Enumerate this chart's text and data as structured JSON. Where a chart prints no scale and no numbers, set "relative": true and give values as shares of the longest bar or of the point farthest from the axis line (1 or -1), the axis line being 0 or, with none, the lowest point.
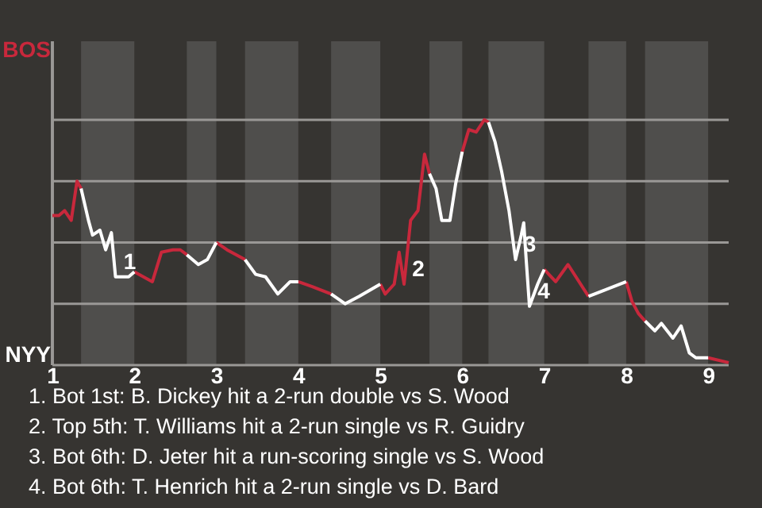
{
  "chart_data": {
    "type": "line",
    "relative": true,
    "x": [
      1.0,
      1.08,
      1.15,
      1.23,
      1.3,
      1.35,
      1.44,
      1.49,
      1.58,
      1.65,
      1.72,
      1.77,
      1.87,
      1.93,
      2.0,
      2.22,
      2.33,
      2.47,
      2.56,
      2.64,
      2.78,
      2.89,
      3.0,
      3.13,
      3.35,
      3.48,
      3.6,
      3.75,
      3.9,
      4.0,
      4.17,
      4.4,
      4.57,
      4.74,
      5.0,
      5.06,
      5.17,
      5.23,
      5.29,
      5.37,
      5.46,
      5.54,
      5.6,
      5.68,
      5.75,
      5.85,
      5.92,
      6.0,
      6.08,
      6.17,
      6.27,
      6.32,
      6.4,
      6.48,
      6.57,
      6.65,
      6.72,
      6.75,
      6.78,
      6.82,
      6.92,
      7.0,
      7.14,
      7.29,
      7.54,
      7.69,
      8.0,
      8.07,
      8.15,
      8.23,
      8.35,
      8.43,
      8.57,
      8.67,
      8.77,
      8.85,
      9.0,
      9.25
    ],
    "series": [
      {
        "color": "#c8283c",
        "values": [
          0.61,
          0.61,
          0.63,
          0.59,
          0.75,
          0.72,
          null,
          null,
          null,
          null,
          null,
          null,
          null,
          null,
          0.38,
          0.34,
          0.46,
          0.47,
          0.47,
          0.45,
          null,
          null,
          0.5,
          0.47,
          0.43,
          null,
          null,
          null,
          null,
          0.34,
          0.32,
          0.29,
          null,
          null,
          0.33,
          0.29,
          0.33,
          0.46,
          0.33,
          0.59,
          0.63,
          0.86,
          0.78,
          null,
          null,
          null,
          null,
          0.87,
          0.96,
          0.95,
          1,
          0.99,
          null,
          null,
          null,
          null,
          null,
          null,
          null,
          null,
          null,
          0.39,
          0.34,
          0.41,
          0.28,
          null,
          0.34,
          0.26,
          0.21,
          0.18,
          null,
          null,
          null,
          null,
          null,
          null,
          0.03,
          0.01
        ]
      },
      {
        "color": "#ffffff",
        "values": [
          null,
          null,
          null,
          null,
          null,
          0.72,
          0.59,
          0.53,
          0.55,
          0.47,
          0.54,
          0.36,
          0.36,
          0.36,
          0.38,
          null,
          null,
          null,
          null,
          0.45,
          0.41,
          0.43,
          0.5,
          null,
          0.43,
          0.37,
          0.36,
          0.29,
          0.34,
          0.34,
          null,
          0.29,
          0.25,
          0.28,
          0.33,
          null,
          null,
          null,
          null,
          null,
          null,
          null,
          0.78,
          0.72,
          0.59,
          0.59,
          0.74,
          0.87,
          null,
          null,
          null,
          0.99,
          0.91,
          0.79,
          0.63,
          0.43,
          0.53,
          0.58,
          0.43,
          0.24,
          0.33,
          0.39,
          null,
          null,
          0.28,
          0.3,
          0.34,
          null,
          null,
          0.18,
          0.14,
          0.17,
          0.11,
          0.16,
          0.05,
          0.03,
          0.03,
          null
        ]
      }
    ],
    "xlim": [
      1,
      9.25
    ],
    "xticks": [
      1,
      2,
      3,
      4,
      5,
      6,
      7,
      8,
      9
    ],
    "grid": "y",
    "bands": [
      {
        "axis": "x",
        "from": 1.35,
        "to": 2.0,
        "color": "#4f4e4c"
      },
      {
        "axis": "x",
        "from": 2.64,
        "to": 3.0,
        "color": "#4f4e4c"
      },
      {
        "axis": "x",
        "from": 3.35,
        "to": 4.0,
        "color": "#4f4e4c"
      },
      {
        "axis": "x",
        "from": 4.4,
        "to": 5.0,
        "color": "#4f4e4c"
      },
      {
        "axis": "x",
        "from": 5.6,
        "to": 6.0,
        "color": "#4f4e4c"
      },
      {
        "axis": "x",
        "from": 6.32,
        "to": 7.0,
        "color": "#4f4e4c"
      },
      {
        "axis": "x",
        "from": 7.54,
        "to": 8.0,
        "color": "#4f4e4c"
      },
      {
        "axis": "x",
        "from": 8.23,
        "to": 9.0,
        "color": "#4f4e4c"
      }
    ],
    "annotations": [
      "BOS",
      "NYY",
      {
        "text": "1",
        "x": 1.77,
        "y": 0.36
      },
      {
        "text": "2",
        "x": 5.29,
        "y": 0.33
      },
      {
        "text": "3",
        "x": 6.65,
        "y": 0.43
      },
      {
        "text": "4",
        "x": 6.82,
        "y": 0.24
      },
      "1. Bot 1st: B. Dickey hit a 2-run double vs S. Wood",
      "2. Top 5th: T. Williams hit a 2-run single vs R. Guidry",
      "3. Bot 6th: D. Jeter hit a run-scoring single vs S. Wood",
      "4. Bot 6th: T. Henrich hit a 2-run single vs D. Bard"
    ]
  }
}
